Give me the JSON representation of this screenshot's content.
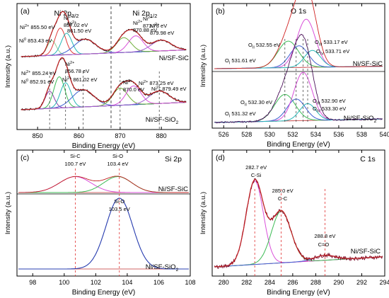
{
  "chart_data": [
    {
      "type": "line",
      "panel_label": "(a)",
      "xlabel": "Binding Energy (eV)",
      "ylabel": "Intensity (a.u.)",
      "xlim": [
        845,
        887
      ],
      "xticks": [
        850,
        860,
        870,
        880
      ],
      "region_labels": [
        {
          "text": "Ni 2p",
          "sub": "3/2",
          "x": 857
        },
        {
          "text": "Ni 2p",
          "sub": "1/2",
          "x": 876
        }
      ],
      "divider_x": 867.8,
      "sample_labels": [
        "Ni/SF-SiC",
        "Ni/SF-SiO",
        "2"
      ],
      "peaks": {
        "top": [
          {
            "species": "Ni",
            "ox": "0",
            "be": 853.43,
            "w": 1.1,
            "color": "#8fd18f"
          },
          {
            "species": "Ni",
            "ox": "2+",
            "be": 855.5,
            "w": 1.3,
            "color": "#e03a3a"
          },
          {
            "species": "Ni",
            "ox": "2+",
            "be": 857.02,
            "w": 1.3,
            "color": "#27b6b6"
          },
          {
            "species": "Ni",
            "ox": "2+",
            "be": 861.5,
            "w": 2.6,
            "color": "#3d5fd1"
          },
          {
            "species": "Ni",
            "ox": "2+",
            "be": 870.88,
            "w": 1.8,
            "color": "#6fae3a"
          },
          {
            "species": "Ni",
            "ox": "2+",
            "be": 873.78,
            "w": 1.8,
            "color": "#d94fd9"
          },
          {
            "species": "Ni",
            "ox": "2+",
            "be": 879.98,
            "w": 2.4,
            "color": "#a25fd0"
          }
        ],
        "bottom": [
          {
            "species": "Ni",
            "ox": "0",
            "be": 852.91,
            "w": 1.1,
            "color": "#8a3ca8"
          },
          {
            "species": "Ni",
            "ox": "2+",
            "be": 855.24,
            "w": 1.3,
            "color": "#3dbb55"
          },
          {
            "species": "Ni",
            "ox": "2+",
            "be": 856.78,
            "w": 1.3,
            "color": "#27b6b6"
          },
          {
            "species": "Ni",
            "ox": "2+",
            "be": 861.02,
            "w": 2.6,
            "color": "#3d5fd1"
          },
          {
            "species": "Ni",
            "ox": "2+",
            "be": 870.0,
            "w": 1.8,
            "color": "#6fae3a"
          },
          {
            "species": "Ni",
            "ox": "2+",
            "be": 873.25,
            "w": 1.8,
            "color": "#d94fd9"
          },
          {
            "species": "Ni",
            "ox": "2+",
            "be": 879.49,
            "w": 2.4,
            "color": "#a25fd0"
          }
        ]
      },
      "labels": {
        "top": [
          {
            "pre": "Ni",
            "sup": "0",
            "post": " 853.43 eV"
          },
          {
            "pre": "Ni",
            "sup": "2+",
            "post": " 855.50 eV"
          },
          {
            "pre": "Ni",
            "sup": "2+",
            "post": " 857.02 eV"
          },
          {
            "pre": "Ni",
            "sup": "2+",
            "post": " 861.50 eV"
          },
          {
            "pre": "Ni",
            "sup": "2+",
            "post": " 870.88 eV"
          },
          {
            "pre": "Ni",
            "sup": "2+",
            "post": " 873.78 eV"
          },
          {
            "pre": "Ni",
            "sup": "2+",
            "post": " 879.98 eV"
          }
        ],
        "bottom": [
          {
            "pre": "Ni",
            "sup": "0",
            "post": " 852.91 eV"
          },
          {
            "pre": "Ni",
            "sup": "2+",
            "post": " 855.24 eV"
          },
          {
            "pre": "Ni",
            "sup": "2+",
            "post": " 856.78 eV"
          },
          {
            "pre": "Ni",
            "sup": "2+",
            "post": " 861.02 eV"
          },
          {
            "pre": "Ni",
            "sup": "2+",
            "post": " 870.0 eV"
          },
          {
            "pre": "Ni",
            "sup": "2+",
            "post": " 873.25 eV"
          },
          {
            "pre": "Ni",
            "sup": "2+",
            "post": " 879.49 eV"
          }
        ]
      }
    },
    {
      "type": "line",
      "panel_label": "(b)",
      "title": "O 1s",
      "xlabel": "Binding Energy (eV)",
      "ylabel": "Intensity (a.u.)",
      "xlim": [
        525,
        540
      ],
      "xticks": [
        526,
        528,
        530,
        532,
        534,
        536,
        538,
        540
      ],
      "sample_labels": [
        "Ni/SF-SiC",
        "Ni/SF-SiO",
        "2"
      ],
      "peaks": {
        "top": [
          {
            "label": "O",
            "sub": "I",
            "be": 531.61,
            "w": 0.9,
            "color": "#3dbb55"
          },
          {
            "label": "O",
            "sub": "II",
            "be": 532.55,
            "w": 0.8,
            "color": "#3d5fd1"
          },
          {
            "label": "O",
            "sub": "III",
            "be": 533.17,
            "w": 0.8,
            "color": "#d94fd9"
          },
          {
            "label": "O",
            "sub": "IV",
            "be": 533.71,
            "w": 0.7,
            "color": "#27b6b6"
          }
        ],
        "bottom": [
          {
            "label": "O",
            "sub": "I",
            "be": 531.32,
            "w": 0.9,
            "color": "#3dbb55"
          },
          {
            "label": "O",
            "sub": "II",
            "be": 532.3,
            "w": 0.8,
            "color": "#3d5fd1"
          },
          {
            "label": "O",
            "sub": "III",
            "be": 532.9,
            "w": 0.8,
            "color": "#d94fd9"
          },
          {
            "label": "O",
            "sub": "IV",
            "be": 533.3,
            "w": 0.7,
            "color": "#27b6b6"
          }
        ]
      },
      "labels": {
        "top": [
          {
            "pre": "O",
            "sub": "I",
            "post": " 531.61 eV"
          },
          {
            "pre": "O",
            "sub": "II",
            "post": " 532.55 eV"
          },
          {
            "pre": "O",
            "sub": "III",
            "post": " 533.17 eV"
          },
          {
            "pre": "O",
            "sub": "IV",
            "post": " 533.71 eV"
          }
        ],
        "bottom": [
          {
            "pre": "O",
            "sub": "I",
            "post": " 531.32 eV"
          },
          {
            "pre": "O",
            "sub": "II",
            "post": " 532.30 eV"
          },
          {
            "pre": "O",
            "sub": "III",
            "post": " 532.90 eV"
          },
          {
            "pre": "O",
            "sub": "IV",
            "post": " 533.30 eV"
          }
        ]
      }
    },
    {
      "type": "line",
      "panel_label": "(c)",
      "title": "Si 2p",
      "xlabel": "Binding Energy (eV)",
      "ylabel": "Intensity (a.u.)",
      "xlim": [
        97,
        108
      ],
      "xticks": [
        98,
        100,
        102,
        104,
        106,
        108
      ],
      "sample_labels": [
        "Ni/SF-SiC",
        "Ni/SF-SiO",
        "2"
      ],
      "peaks": {
        "top": [
          {
            "label": "Si-C",
            "be": 100.7,
            "w": 1.0,
            "color": "#d94fd9"
          },
          {
            "label": "Si-O",
            "be": 103.4,
            "w": 0.9,
            "color": "#3dbb55"
          }
        ],
        "bottom": [
          {
            "label": "Si-O",
            "be": 103.5,
            "w": 0.85,
            "color": "#2a3fb0"
          }
        ]
      },
      "labels": {
        "top": [
          {
            "name": "Si-C",
            "value": "100.7 eV"
          },
          {
            "name": "Si-O",
            "value": "103.4 eV"
          }
        ],
        "bottom": [
          {
            "name": "Si-O",
            "value": "103.5 eV"
          }
        ]
      }
    },
    {
      "type": "line",
      "panel_label": "(d)",
      "title": "C 1s",
      "xlabel": "Binding Energy (eV)",
      "ylabel": "Intensity (a.u.)",
      "xlim": [
        279,
        294
      ],
      "xticks": [
        280,
        282,
        284,
        286,
        288,
        290,
        292,
        294
      ],
      "sample_labels": [
        "Ni/SF-SiC"
      ],
      "peaks": [
        {
          "label": "C-Si",
          "be": 282.7,
          "w": 0.75,
          "color": "#d94fd9"
        },
        {
          "label": "C-C",
          "be": 285.0,
          "w": 0.85,
          "color": "#3dbb55"
        },
        {
          "label": "C=O",
          "be": 288.8,
          "w": 0.9,
          "color": "#3d5fd1"
        }
      ],
      "labels": [
        {
          "value": "282.7 eV",
          "name": "C-Si"
        },
        {
          "value": "285.0 eV",
          "name": "C-C"
        },
        {
          "value": "288.8 eV",
          "name": "C=O"
        }
      ]
    }
  ]
}
